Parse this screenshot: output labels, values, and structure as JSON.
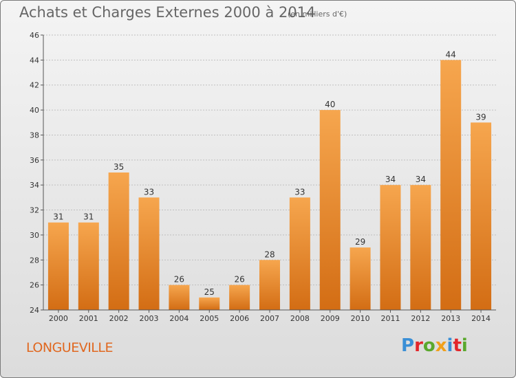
{
  "header": {
    "title": "Achats et Charges Externes 2000 à 2014",
    "subtitle": "(en milliers d'€)"
  },
  "footer": {
    "town": "LONGUEVILLE",
    "logo_letters": [
      "P",
      "r",
      "o",
      "x",
      "i",
      "t",
      "i"
    ],
    "logo_colors": [
      "#3a8fd6",
      "#e2262a",
      "#5aa82d",
      "#f0a01c",
      "#3a8fd6",
      "#e2262a",
      "#5aa82d"
    ]
  },
  "colors": {
    "bar_light": "#f6a64e",
    "bar_dark": "#d36d14",
    "grid": "#bfbfbf",
    "axis": "#555555",
    "label": "#333333"
  },
  "chart_data": {
    "type": "bar",
    "title": "Achats et Charges Externes 2000 à 2014",
    "subtitle": "(en milliers d'€)",
    "xlabel": "",
    "ylabel": "",
    "categories": [
      "2000",
      "2001",
      "2002",
      "2003",
      "2004",
      "2005",
      "2006",
      "2007",
      "2008",
      "2009",
      "2010",
      "2011",
      "2012",
      "2013",
      "2014"
    ],
    "values": [
      31,
      31,
      35,
      33,
      26,
      25,
      26,
      28,
      33,
      40,
      29,
      34,
      34,
      44,
      39
    ],
    "ylim": [
      24,
      46
    ],
    "yticks": [
      24,
      26,
      28,
      30,
      32,
      34,
      36,
      38,
      40,
      42,
      44,
      46
    ],
    "grid": true,
    "legend": "none"
  }
}
